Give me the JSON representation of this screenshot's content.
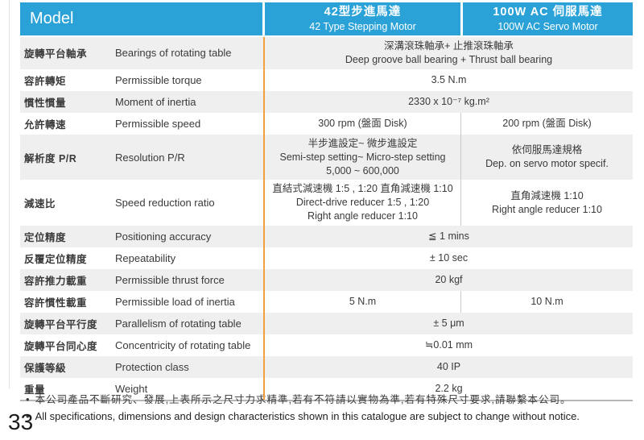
{
  "header": {
    "model_label": "Model",
    "columns": [
      {
        "title_zh": "42型步進馬達",
        "title_en": "42 Type Stepping Motor"
      },
      {
        "title_zh": "100W AC 伺服馬達",
        "title_en": "100W AC Servo Motor"
      }
    ]
  },
  "rows": [
    {
      "label_zh": "旋轉平台軸承",
      "label_en": "Bearings of rotating table",
      "span": true,
      "value_lines": [
        "深溝滾珠軸承+ 止推滾珠軸承",
        "Deep groove ball bearing +  Thrust ball bearing"
      ]
    },
    {
      "label_zh": "容許轉矩",
      "label_en": "Permissible torque",
      "span": true,
      "value_lines": [
        "3.5 N.m"
      ]
    },
    {
      "label_zh": "慣性慣量",
      "label_en": "Moment of inertia",
      "span": true,
      "value_lines": [
        "2330 x 10⁻⁷ kg.m²"
      ]
    },
    {
      "label_zh": "允許轉速",
      "label_en": "Permissible speed",
      "span": false,
      "col1_lines": [
        "300 rpm (盤面 Disk)"
      ],
      "col2_lines": [
        "200 rpm (盤面 Disk)"
      ]
    },
    {
      "label_zh": "解析度 P/R",
      "label_en": "Resolution P/R",
      "span": false,
      "col1_lines": [
        "半步進設定~ 微步進設定",
        "Semi-step setting~ Micro-step setting",
        "5,000 ~  600,000"
      ],
      "col2_lines": [
        "依伺服馬達規格",
        "Dep. on servo motor specif."
      ]
    },
    {
      "label_zh": "減速比",
      "label_en": "Speed reduction ratio",
      "span": false,
      "col1_lines": [
        "直結式減速機 1:5 , 1:20  直角減速機 1:10",
        "Direct-drive reducer  1:5 , 1:20",
        "Right angle reducer  1:10"
      ],
      "col2_lines": [
        "直角減速機 1:10",
        "Right angle reducer  1:10"
      ]
    },
    {
      "label_zh": "定位精度",
      "label_en": "Positioning accuracy",
      "span": true,
      "value_lines": [
        "≦ 1 mins"
      ]
    },
    {
      "label_zh": "反覆定位精度",
      "label_en": "Repeatability",
      "span": true,
      "value_lines": [
        "± 10 sec"
      ]
    },
    {
      "label_zh": "容許推力載重",
      "label_en": "Permissible thrust force",
      "span": true,
      "value_lines": [
        "20 kgf"
      ]
    },
    {
      "label_zh": "容許慣性載重",
      "label_en": "Permissible load of inertia",
      "span": false,
      "col1_lines": [
        "5 N.m"
      ],
      "col2_lines": [
        "10 N.m"
      ]
    },
    {
      "label_zh": "旋轉平台平行度",
      "label_en": "Parallelism of rotating table",
      "span": true,
      "value_lines": [
        "± 5 μm"
      ]
    },
    {
      "label_zh": "旋轉平台同心度",
      "label_en": "Concentricity of rotating table",
      "span": true,
      "value_lines": [
        "≒0.01 mm"
      ]
    },
    {
      "label_zh": "保護等級",
      "label_en": "Protection class",
      "span": true,
      "value_lines": [
        "40 IP"
      ]
    },
    {
      "label_zh": "重量",
      "label_en": "Weight",
      "span": true,
      "value_lines": [
        "2.2 kg"
      ]
    }
  ],
  "notes": [
    {
      "bullet": "•",
      "text": "本公司產品不斷研究、發展,上表所示之尺寸力求精準,若有不符請以實物為準,若有特殊尺寸要求,請聯繫本公司。"
    },
    {
      "bullet": "•",
      "text": "All specifications, dimensions and design characteristics shown in this catalogue are subject to change without notice."
    }
  ],
  "page_number": "33",
  "colors": {
    "header_blue": "#2aa2d8",
    "divider_orange": "#f2a23c",
    "row_shaded": "#efefef"
  }
}
